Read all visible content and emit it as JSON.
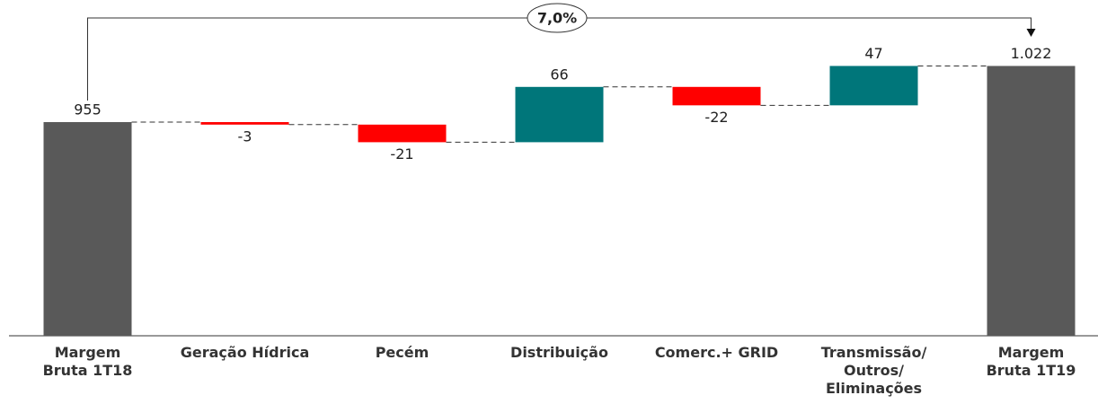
{
  "chart_data": {
    "type": "waterfall",
    "categories": [
      "Margem\nBruta 1T18",
      "Geração Hídrica",
      "Pecém",
      "Distribuição",
      "Comerc.+ GRID",
      "Transmissão/\nOutros/\nEliminações",
      "Margem\nBruta 1T19"
    ],
    "values": [
      955,
      -3,
      -21,
      66,
      -22,
      47,
      1022
    ],
    "value_labels": [
      "955",
      "-3",
      "-21",
      "66",
      "-22",
      "47",
      "1.022"
    ],
    "totals": [
      true,
      false,
      false,
      false,
      false,
      false,
      true
    ],
    "colors": {
      "total": "#595959",
      "increase": "#00767a",
      "decrease": "#ff0000"
    },
    "ylim": [
      700,
      1090
    ],
    "annotation": "7,0%"
  }
}
